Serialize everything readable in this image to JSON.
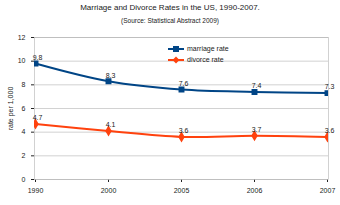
{
  "chart_data": {
    "type": "line",
    "title": "Marriage and Divorce Rates in the US, 1990-2007.",
    "subtitle": "(Source: Statistical Abstract 2009)",
    "y_label": "rate per 1,000",
    "categories": [
      "1990",
      "2000",
      "2005",
      "2006",
      "2007"
    ],
    "series": [
      {
        "name": "marriage rate",
        "color": "#004586",
        "marker": "square",
        "values": [
          9.8,
          8.3,
          7.6,
          7.4,
          7.3
        ]
      },
      {
        "name": "divorce rate",
        "color": "#ff420e",
        "marker": "diamond",
        "values": [
          4.7,
          4.1,
          3.6,
          3.7,
          3.6
        ]
      }
    ],
    "ylim": [
      0,
      12
    ],
    "yticks": [
      0,
      2,
      4,
      6,
      8,
      10,
      12
    ],
    "grid": true,
    "legend": "top",
    "data_labels": true
  }
}
